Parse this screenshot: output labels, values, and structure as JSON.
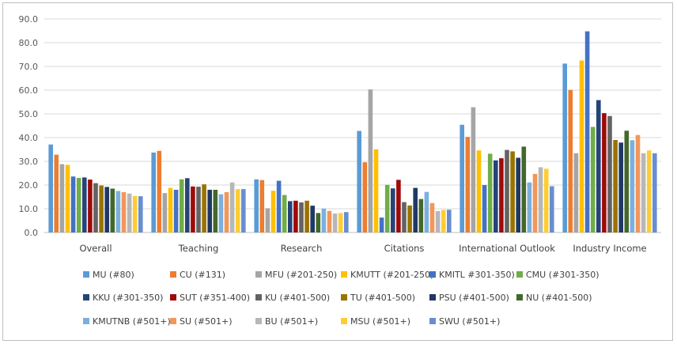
{
  "chart_data": {
    "type": "bar",
    "title": "",
    "xlabel": "",
    "ylabel": "",
    "ylim": [
      0,
      90
    ],
    "yticks": [
      "0.0",
      "10.0",
      "20.0",
      "30.0",
      "40.0",
      "50.0",
      "60.0",
      "70.0",
      "80.0",
      "90.0"
    ],
    "grid": true,
    "legend_position": "bottom",
    "categories": [
      "Overall",
      "Teaching",
      "Research",
      "Citations",
      "International Outlook",
      "Industry Income"
    ],
    "series": [
      {
        "name": "MU (#80)",
        "color": "#5b9bd5",
        "values": [
          37.1,
          33.7,
          22.4,
          42.8,
          45.4,
          71.2
        ]
      },
      {
        "name": "CU (#131)",
        "color": "#ed7d31",
        "values": [
          32.8,
          34.4,
          22.1,
          29.6,
          40.3,
          60.1
        ]
      },
      {
        "name": "MFU (#201-250)",
        "color": "#a5a5a5",
        "values": [
          28.8,
          16.6,
          10.2,
          60.3,
          52.8,
          33.4
        ]
      },
      {
        "name": "KMUTT (#201-250)",
        "color": "#ffc000",
        "values": [
          28.5,
          18.8,
          17.6,
          35.1,
          34.6,
          72.5
        ]
      },
      {
        "name": "KMITL #301-350)",
        "color": "#4472c4",
        "values": [
          23.6,
          18.0,
          21.8,
          6.3,
          20.0,
          84.8
        ]
      },
      {
        "name": "CMU (#301-350)",
        "color": "#70ad47",
        "values": [
          23.0,
          22.4,
          15.8,
          20.1,
          33.2,
          44.5
        ]
      },
      {
        "name": "KKU (#301-350)",
        "color": "#264478",
        "values": [
          23.2,
          22.9,
          13.2,
          18.6,
          30.4,
          55.8
        ]
      },
      {
        "name": "SUT (#351-400)",
        "color": "#9e0a0a",
        "values": [
          22.3,
          19.4,
          13.4,
          22.2,
          31.3,
          50.3
        ]
      },
      {
        "name": "KU (#401-500)",
        "color": "#636363",
        "values": [
          20.8,
          19.3,
          12.7,
          12.8,
          34.8,
          49.1
        ]
      },
      {
        "name": "TU (#401-500)",
        "color": "#997300",
        "values": [
          19.8,
          20.3,
          13.4,
          11.4,
          34.2,
          39.0
        ]
      },
      {
        "name": "PSU (#401-500)",
        "color": "#203864",
        "values": [
          19.2,
          18.0,
          11.3,
          18.8,
          31.5,
          37.9
        ]
      },
      {
        "name": "NU (#401-500)",
        "color": "#43682b",
        "values": [
          18.5,
          18.0,
          8.2,
          14.1,
          36.2,
          42.9
        ]
      },
      {
        "name": "KMUTNB (#501+)",
        "color": "#7cafdd",
        "values": [
          17.5,
          16.1,
          10.1,
          17.1,
          21.1,
          38.9
        ]
      },
      {
        "name": "SU (#501+)",
        "color": "#f1975a",
        "values": [
          17.0,
          17.0,
          9.1,
          12.4,
          24.7,
          41.1
        ]
      },
      {
        "name": "BU (#501+)",
        "color": "#b7b7b7",
        "values": [
          16.4,
          21.1,
          8.0,
          9.0,
          27.5,
          33.4
        ]
      },
      {
        "name": "MSU (#501+)",
        "color": "#ffcd33",
        "values": [
          15.4,
          18.3,
          8.2,
          9.5,
          26.9,
          34.6
        ]
      },
      {
        "name": "SWU (#501+)",
        "color": "#698ed0",
        "values": [
          15.3,
          18.3,
          8.6,
          9.6,
          19.5,
          33.4
        ]
      }
    ]
  }
}
